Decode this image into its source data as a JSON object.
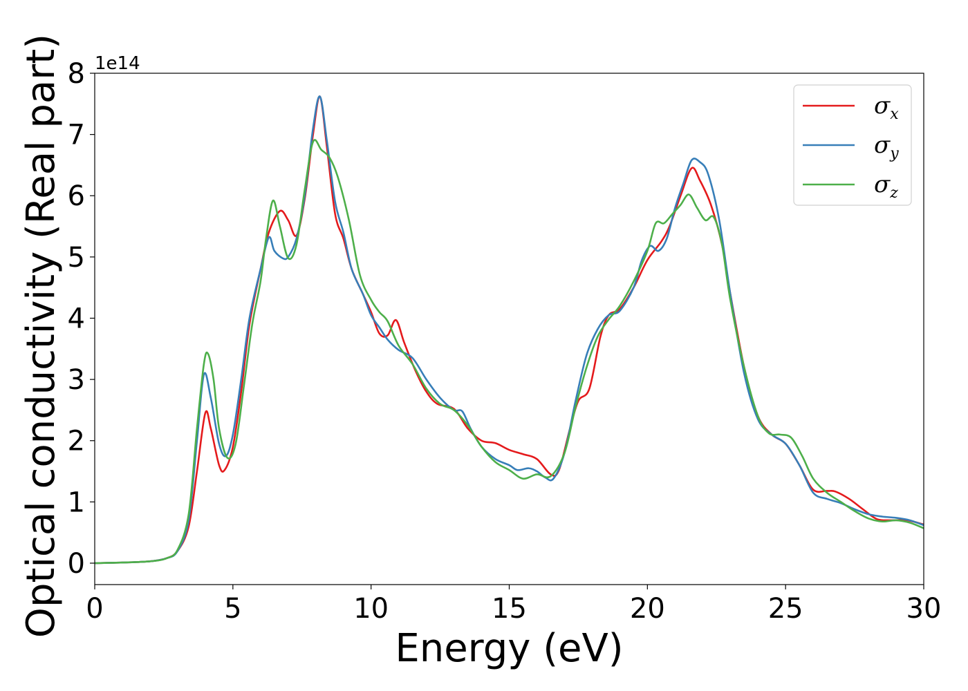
{
  "chart_data": {
    "type": "line",
    "xlabel": "Energy (eV)",
    "ylabel": "Optical conductivity (Real part)",
    "y_offset_label": "1e14",
    "y_scale": 100000000000000.0,
    "xlim": [
      0,
      30
    ],
    "ylim": [
      -0.35,
      8
    ],
    "xticks": [
      0,
      5,
      10,
      15,
      20,
      25,
      30
    ],
    "yticks": [
      0,
      1,
      2,
      3,
      4,
      5,
      6,
      7,
      8
    ],
    "grid": false,
    "legend_position": "top-right",
    "series": [
      {
        "name": "σx",
        "label_base": "σ",
        "label_sub": "x",
        "color": "#e41a1c",
        "points": [
          [
            0,
            0
          ],
          [
            1,
            0.01
          ],
          [
            2,
            0.03
          ],
          [
            2.6,
            0.08
          ],
          [
            3,
            0.2
          ],
          [
            3.4,
            0.6
          ],
          [
            3.7,
            1.5
          ],
          [
            4,
            2.45
          ],
          [
            4.2,
            2.2
          ],
          [
            4.5,
            1.6
          ],
          [
            4.7,
            1.52
          ],
          [
            5,
            1.9
          ],
          [
            5.3,
            2.8
          ],
          [
            5.6,
            3.9
          ],
          [
            6,
            4.8
          ],
          [
            6.3,
            5.4
          ],
          [
            6.7,
            5.75
          ],
          [
            7,
            5.6
          ],
          [
            7.3,
            5.35
          ],
          [
            7.6,
            5.95
          ],
          [
            7.9,
            7.0
          ],
          [
            8.15,
            7.62
          ],
          [
            8.4,
            6.8
          ],
          [
            8.7,
            5.7
          ],
          [
            9,
            5.3
          ],
          [
            9.3,
            4.8
          ],
          [
            9.7,
            4.4
          ],
          [
            10,
            4.1
          ],
          [
            10.3,
            3.75
          ],
          [
            10.6,
            3.72
          ],
          [
            10.9,
            3.97
          ],
          [
            11.2,
            3.6
          ],
          [
            11.6,
            3.15
          ],
          [
            12,
            2.8
          ],
          [
            12.4,
            2.6
          ],
          [
            13,
            2.52
          ],
          [
            13.5,
            2.2
          ],
          [
            14,
            2.0
          ],
          [
            14.5,
            1.96
          ],
          [
            15,
            1.85
          ],
          [
            15.5,
            1.78
          ],
          [
            16,
            1.7
          ],
          [
            16.5,
            1.45
          ],
          [
            16.8,
            1.52
          ],
          [
            17.2,
            2.2
          ],
          [
            17.5,
            2.65
          ],
          [
            17.9,
            2.85
          ],
          [
            18.3,
            3.7
          ],
          [
            18.6,
            4.05
          ],
          [
            19,
            4.15
          ],
          [
            19.5,
            4.5
          ],
          [
            20,
            4.95
          ],
          [
            20.5,
            5.25
          ],
          [
            20.8,
            5.5
          ],
          [
            21.2,
            6.0
          ],
          [
            21.6,
            6.45
          ],
          [
            21.9,
            6.25
          ],
          [
            22.3,
            5.85
          ],
          [
            22.7,
            5.2
          ],
          [
            23,
            4.4
          ],
          [
            23.5,
            3.2
          ],
          [
            24,
            2.4
          ],
          [
            24.5,
            2.1
          ],
          [
            25,
            1.95
          ],
          [
            25.5,
            1.6
          ],
          [
            26,
            1.2
          ],
          [
            26.5,
            1.18
          ],
          [
            26.8,
            1.17
          ],
          [
            27.3,
            1.05
          ],
          [
            27.8,
            0.88
          ],
          [
            28.3,
            0.72
          ],
          [
            28.8,
            0.7
          ],
          [
            29.4,
            0.7
          ],
          [
            30,
            0.63
          ]
        ]
      },
      {
        "name": "σy",
        "label_base": "σ",
        "label_sub": "y",
        "color": "#377eb8",
        "points": [
          [
            0,
            0
          ],
          [
            1,
            0.01
          ],
          [
            2,
            0.03
          ],
          [
            2.6,
            0.08
          ],
          [
            3,
            0.2
          ],
          [
            3.4,
            0.7
          ],
          [
            3.7,
            2.0
          ],
          [
            3.95,
            3.08
          ],
          [
            4.2,
            2.7
          ],
          [
            4.5,
            1.95
          ],
          [
            4.75,
            1.75
          ],
          [
            5,
            2.1
          ],
          [
            5.3,
            3.0
          ],
          [
            5.6,
            4.0
          ],
          [
            6,
            4.8
          ],
          [
            6.3,
            5.32
          ],
          [
            6.5,
            5.1
          ],
          [
            6.8,
            4.98
          ],
          [
            7,
            5.0
          ],
          [
            7.3,
            5.3
          ],
          [
            7.6,
            6.0
          ],
          [
            7.9,
            7.1
          ],
          [
            8.15,
            7.62
          ],
          [
            8.4,
            6.9
          ],
          [
            8.7,
            5.9
          ],
          [
            9,
            5.4
          ],
          [
            9.3,
            4.8
          ],
          [
            9.7,
            4.4
          ],
          [
            10,
            4.05
          ],
          [
            10.3,
            3.85
          ],
          [
            10.6,
            3.65
          ],
          [
            11,
            3.48
          ],
          [
            11.5,
            3.35
          ],
          [
            12,
            3.0
          ],
          [
            12.5,
            2.7
          ],
          [
            13,
            2.5
          ],
          [
            13.3,
            2.48
          ],
          [
            13.6,
            2.2
          ],
          [
            14,
            1.9
          ],
          [
            14.5,
            1.7
          ],
          [
            15,
            1.6
          ],
          [
            15.3,
            1.52
          ],
          [
            15.7,
            1.55
          ],
          [
            16,
            1.5
          ],
          [
            16.3,
            1.4
          ],
          [
            16.6,
            1.38
          ],
          [
            17,
            1.8
          ],
          [
            17.4,
            2.65
          ],
          [
            17.8,
            3.4
          ],
          [
            18.2,
            3.82
          ],
          [
            18.6,
            4.05
          ],
          [
            19,
            4.12
          ],
          [
            19.5,
            4.5
          ],
          [
            19.8,
            4.95
          ],
          [
            20.1,
            5.18
          ],
          [
            20.4,
            5.1
          ],
          [
            20.7,
            5.3
          ],
          [
            21,
            5.8
          ],
          [
            21.3,
            6.2
          ],
          [
            21.6,
            6.58
          ],
          [
            21.9,
            6.55
          ],
          [
            22.2,
            6.35
          ],
          [
            22.6,
            5.6
          ],
          [
            23,
            4.4
          ],
          [
            23.5,
            3.1
          ],
          [
            24,
            2.35
          ],
          [
            24.5,
            2.1
          ],
          [
            25,
            1.95
          ],
          [
            25.5,
            1.6
          ],
          [
            26,
            1.15
          ],
          [
            26.5,
            1.05
          ],
          [
            27,
            0.98
          ],
          [
            27.5,
            0.88
          ],
          [
            28,
            0.8
          ],
          [
            28.5,
            0.76
          ],
          [
            29,
            0.74
          ],
          [
            29.5,
            0.7
          ],
          [
            30,
            0.62
          ]
        ]
      },
      {
        "name": "σz",
        "label_base": "σ",
        "label_sub": "z",
        "color": "#4daf4a",
        "points": [
          [
            0,
            0
          ],
          [
            1,
            0.01
          ],
          [
            2,
            0.03
          ],
          [
            2.6,
            0.08
          ],
          [
            3,
            0.22
          ],
          [
            3.4,
            0.8
          ],
          [
            3.7,
            2.2
          ],
          [
            3.95,
            3.25
          ],
          [
            4.1,
            3.42
          ],
          [
            4.3,
            3.0
          ],
          [
            4.5,
            2.2
          ],
          [
            4.8,
            1.72
          ],
          [
            5.1,
            1.95
          ],
          [
            5.4,
            2.9
          ],
          [
            5.7,
            3.9
          ],
          [
            6,
            4.6
          ],
          [
            6.2,
            5.3
          ],
          [
            6.45,
            5.92
          ],
          [
            6.7,
            5.5
          ],
          [
            7,
            4.98
          ],
          [
            7.3,
            5.2
          ],
          [
            7.6,
            6.1
          ],
          [
            7.9,
            6.88
          ],
          [
            8.2,
            6.75
          ],
          [
            8.5,
            6.62
          ],
          [
            8.8,
            6.3
          ],
          [
            9.2,
            5.6
          ],
          [
            9.6,
            4.7
          ],
          [
            10,
            4.3
          ],
          [
            10.3,
            4.1
          ],
          [
            10.6,
            3.95
          ],
          [
            11,
            3.55
          ],
          [
            11.5,
            3.25
          ],
          [
            12,
            2.85
          ],
          [
            12.5,
            2.6
          ],
          [
            13,
            2.5
          ],
          [
            13.5,
            2.25
          ],
          [
            14,
            1.9
          ],
          [
            14.5,
            1.65
          ],
          [
            15,
            1.52
          ],
          [
            15.5,
            1.38
          ],
          [
            16,
            1.45
          ],
          [
            16.5,
            1.42
          ],
          [
            17,
            1.8
          ],
          [
            17.4,
            2.55
          ],
          [
            17.8,
            3.2
          ],
          [
            18.2,
            3.7
          ],
          [
            18.6,
            3.98
          ],
          [
            19,
            4.2
          ],
          [
            19.5,
            4.6
          ],
          [
            20,
            5.1
          ],
          [
            20.3,
            5.55
          ],
          [
            20.6,
            5.55
          ],
          [
            20.9,
            5.7
          ],
          [
            21.2,
            5.85
          ],
          [
            21.5,
            6.02
          ],
          [
            21.8,
            5.8
          ],
          [
            22.1,
            5.6
          ],
          [
            22.4,
            5.65
          ],
          [
            22.7,
            5.2
          ],
          [
            23,
            4.3
          ],
          [
            23.5,
            3.2
          ],
          [
            24,
            2.4
          ],
          [
            24.4,
            2.12
          ],
          [
            24.8,
            2.1
          ],
          [
            25.2,
            2.05
          ],
          [
            25.6,
            1.75
          ],
          [
            26,
            1.38
          ],
          [
            26.5,
            1.15
          ],
          [
            27,
            1.0
          ],
          [
            27.5,
            0.85
          ],
          [
            28,
            0.73
          ],
          [
            28.5,
            0.68
          ],
          [
            29,
            0.7
          ],
          [
            29.5,
            0.66
          ],
          [
            30,
            0.57
          ]
        ]
      }
    ]
  }
}
